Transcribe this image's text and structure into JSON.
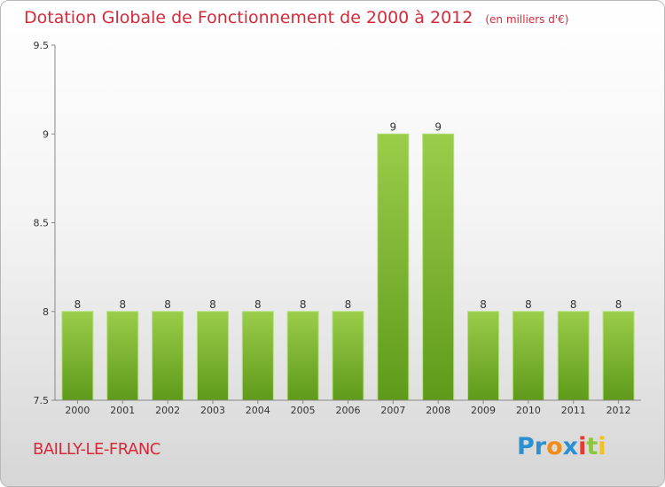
{
  "chart_data": {
    "type": "bar",
    "title": "Dotation Globale de Fonctionnement de 2000 à 2012",
    "subtitle": "(en milliers d'€)",
    "categories": [
      "2000",
      "2001",
      "2002",
      "2003",
      "2004",
      "2005",
      "2006",
      "2007",
      "2008",
      "2009",
      "2010",
      "2011",
      "2012"
    ],
    "values": [
      8,
      8,
      8,
      8,
      8,
      8,
      8,
      9,
      9,
      8,
      8,
      8,
      8
    ],
    "data_labels": [
      "8",
      "8",
      "8",
      "8",
      "8",
      "8",
      "8",
      "9",
      "9",
      "8",
      "8",
      "8",
      "8"
    ],
    "xlabel": "",
    "ylabel": "",
    "ylim": [
      7.5,
      9.5
    ],
    "yticks": [
      7.5,
      8,
      8.5,
      9,
      9.5
    ],
    "ytick_labels": [
      "7.5",
      "8",
      "8.5",
      "9",
      "9.5"
    ],
    "grid": false,
    "legend": "none",
    "colors": {
      "bar_top": "#9acd4a",
      "bar_bottom": "#5f9a1a",
      "text": "#d62a3a"
    }
  },
  "commune": "BAILLY-LE-FRANC",
  "logo": {
    "part1": "Pr",
    "part2": "o",
    "part3": "x",
    "part4": "i",
    "part5": "t",
    "part6": "i"
  }
}
